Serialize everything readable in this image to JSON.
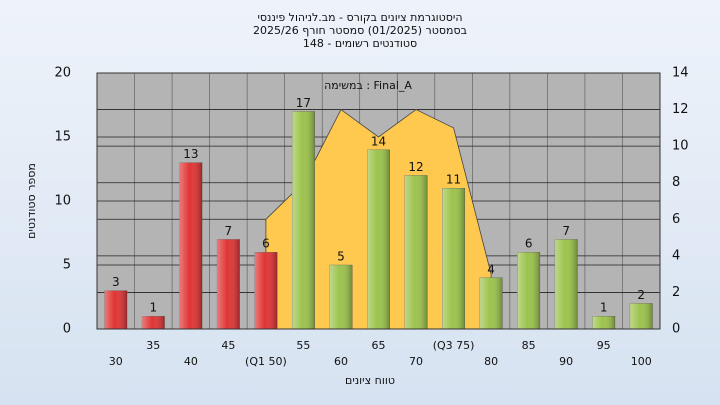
{
  "chart_data": {
    "type": "bar",
    "title_lines": [
      "היסטוגרמת ציונים בקורס - מב.לניהול פיננסי",
      "בסמסטר  (01/2025)  סמסטר חורף 2025/26",
      "סטודנטים רשומים - 148"
    ],
    "annotation": "במשימה : Final_A",
    "y_label": "מספר סטודנטים",
    "x_label": "טווח ציונים",
    "categories": [
      "30",
      "35",
      "40",
      "45",
      "(Q1 50)",
      "55",
      "60",
      "65",
      "70",
      "(Q3 75)",
      "80",
      "85",
      "90",
      "95",
      "100"
    ],
    "values": [
      3,
      1,
      13,
      7,
      6,
      17,
      5,
      14,
      12,
      11,
      4,
      6,
      7,
      1,
      2
    ],
    "colors": [
      "#e03434",
      "#e03434",
      "#e03434",
      "#e03434",
      "#e03434",
      "#9cc34c",
      "#9cc34c",
      "#9cc34c",
      "#9cc34c",
      "#9cc34c",
      "#9cc34c",
      "#9cc34c",
      "#9cc34c",
      "#9cc34c",
      "#9cc34c"
    ],
    "curve": {
      "color": "#ffc94f",
      "axis": "y2",
      "values": [
        null,
        null,
        null,
        null,
        6,
        8,
        12,
        10.5,
        12,
        11,
        3,
        null,
        null,
        null,
        null
      ]
    },
    "ylim": [
      0,
      20
    ],
    "yticks": [
      0,
      5,
      10,
      15,
      20
    ],
    "y2lim": [
      0,
      14
    ],
    "y2ticks": [
      0,
      2,
      4,
      6,
      8,
      10,
      12,
      14
    ],
    "grid": true
  }
}
